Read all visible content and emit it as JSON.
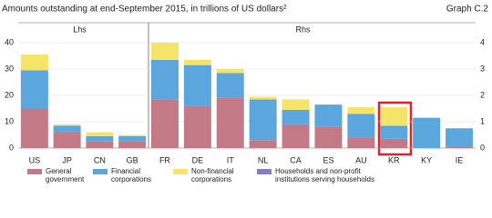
{
  "chart_data": [
    {
      "type": "bar",
      "stacked": true,
      "title": "Amounts outstanding at end-September 2015, in trillions of US dollars²",
      "graph_label": "Graph C.2",
      "axis_label": "Lhs",
      "axis_side": "left",
      "grid": true,
      "categories": [
        "US",
        "JP",
        "CN",
        "GB"
      ],
      "ylim": [
        0,
        40
      ],
      "yticks": [
        0,
        10,
        20,
        30,
        40
      ],
      "series": [
        {
          "name": "General government",
          "color": "#c47a86",
          "values": [
            15,
            6,
            2.5,
            2.5
          ]
        },
        {
          "name": "Financial corporations",
          "color": "#5ba7dd",
          "values": [
            14.5,
            2.5,
            2,
            2
          ]
        },
        {
          "name": "Non-financial corporations",
          "color": "#f5e46a",
          "values": [
            6,
            0.5,
            1.5,
            0.5
          ]
        },
        {
          "name": "Households and non-profit institutions serving households",
          "color": "#7e7fc6",
          "values": [
            0,
            0,
            0,
            0
          ]
        }
      ]
    },
    {
      "type": "bar",
      "stacked": true,
      "axis_label": "Rhs",
      "axis_side": "right",
      "grid": true,
      "categories": [
        "FR",
        "DE",
        "IT",
        "NL",
        "CA",
        "ES",
        "AU",
        "KR",
        "KY",
        "IE"
      ],
      "ylim": [
        0,
        4
      ],
      "yticks": [
        0,
        1,
        2,
        3,
        4
      ],
      "series": [
        {
          "color": "#c47a86",
          "values": [
            1.85,
            1.6,
            1.9,
            0.3,
            0.9,
            0.8,
            0.4,
            0.35,
            0,
            0.05
          ]
        },
        {
          "color": "#5ba7dd",
          "values": [
            1.5,
            1.55,
            0.95,
            1.55,
            0.55,
            0.85,
            0.9,
            0.5,
            1.15,
            0.7
          ]
        },
        {
          "color": "#f5e46a",
          "values": [
            0.65,
            0.2,
            0.15,
            0.1,
            0.4,
            0,
            0.25,
            0.7,
            0,
            0
          ]
        },
        {
          "color": "#7e7fc6",
          "values": [
            0,
            0,
            0,
            0,
            0,
            0,
            0,
            0,
            0,
            0
          ]
        }
      ]
    }
  ]
}
